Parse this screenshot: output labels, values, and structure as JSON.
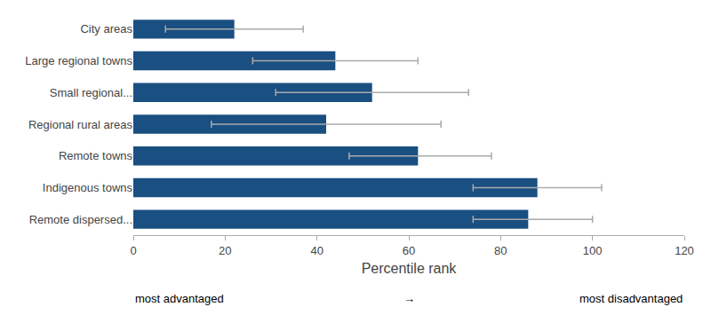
{
  "chart_data": {
    "type": "bar",
    "orientation": "horizontal",
    "categories": [
      "City areas",
      "Large regional towns",
      "Small regional...",
      "Regional rural areas",
      "Remote towns",
      "Indigenous towns",
      "Remote dispersed..."
    ],
    "values": [
      22,
      44,
      52,
      42,
      62,
      88,
      86
    ],
    "error_bars": {
      "low": [
        7,
        26,
        31,
        17,
        47,
        74,
        74
      ],
      "high": [
        37,
        62,
        73,
        67,
        78,
        102,
        100
      ],
      "color": "#aaaaaa"
    },
    "color": "#1a4f82",
    "xlabel": "Percentile rank",
    "xlim": [
      0,
      120
    ],
    "xticks": [
      0,
      20,
      40,
      60,
      80,
      100,
      120
    ],
    "grid": false,
    "annotations": [
      "most advantaged",
      "→",
      "most disadvantaged"
    ]
  }
}
